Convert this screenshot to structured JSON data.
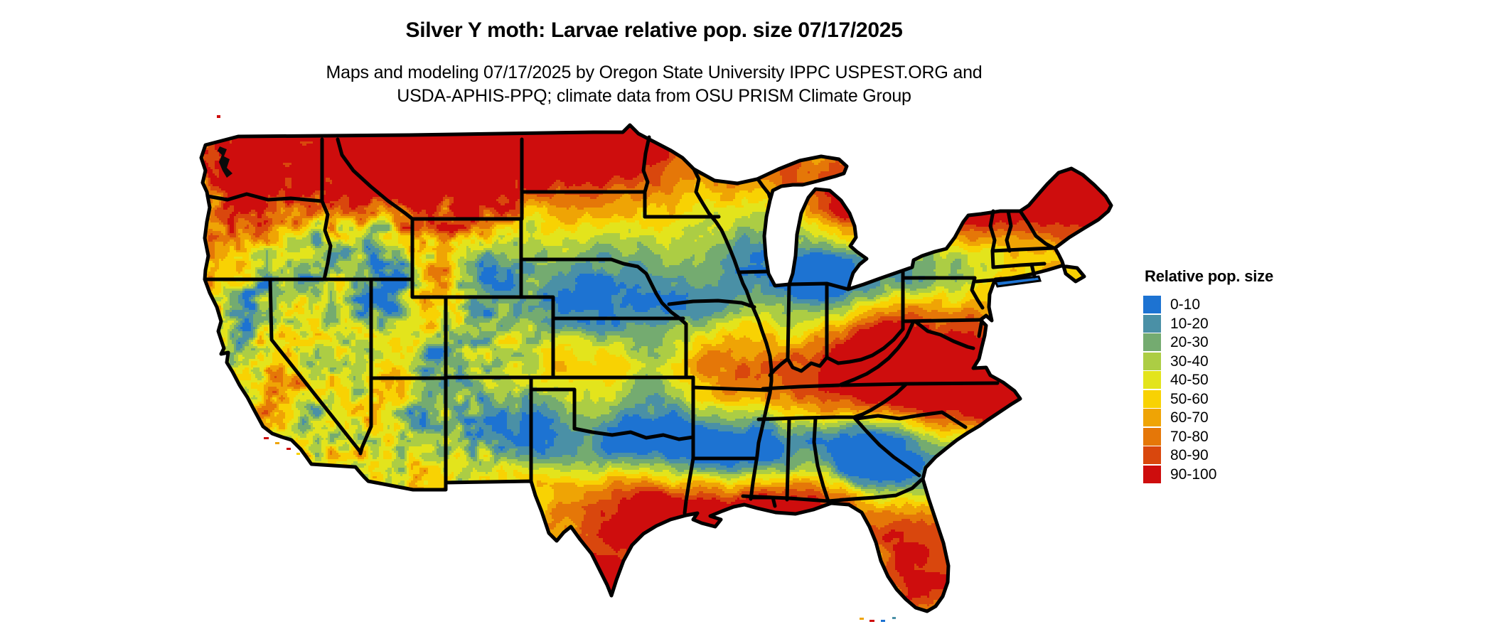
{
  "header": {
    "title": "Silver Y moth: Larvae relative pop. size 07/17/2025",
    "subtitle_lines": [
      "Maps and modeling 07/17/2025 by Oregon State University IPPC USPEST.ORG and",
      "USDA-APHIS-PPQ; climate data from OSU PRISM Climate Group"
    ]
  },
  "legend": {
    "title": "Relative pop. size",
    "entries": [
      {
        "label": "0-10",
        "color": "#1d73d2"
      },
      {
        "label": "10-20",
        "color": "#4a90a6"
      },
      {
        "label": "20-30",
        "color": "#74ab70"
      },
      {
        "label": "30-40",
        "color": "#accd44"
      },
      {
        "label": "40-50",
        "color": "#e3e41c"
      },
      {
        "label": "50-60",
        "color": "#f8d203"
      },
      {
        "label": "60-70",
        "color": "#efa405"
      },
      {
        "label": "70-80",
        "color": "#e57708"
      },
      {
        "label": "80-90",
        "color": "#d9470d"
      },
      {
        "label": "90-100",
        "color": "#ce0d0d"
      }
    ]
  },
  "chart_data": {
    "type": "heatmap",
    "title": "Silver Y moth: Larvae relative pop. size 07/17/2025",
    "region": "Continental United States with state boundaries",
    "variable": "Relative population size",
    "date": "07/17/2025",
    "bins": [
      "0-10",
      "10-20",
      "20-30",
      "30-40",
      "40-50",
      "50-60",
      "60-70",
      "70-80",
      "80-90",
      "90-100"
    ],
    "bin_colors": [
      "#1d73d2",
      "#4a90a6",
      "#74ab70",
      "#accd44",
      "#e3e41c",
      "#f8d203",
      "#efa405",
      "#e57708",
      "#d9470d",
      "#ce0d0d"
    ],
    "legend_position": "right",
    "background": "#ffffff",
    "source_note": "Maps and modeling 07/17/2025 by Oregon State University IPPC USPEST.ORG and USDA-APHIS-PPQ; climate data from OSU PRISM Climate Group"
  }
}
